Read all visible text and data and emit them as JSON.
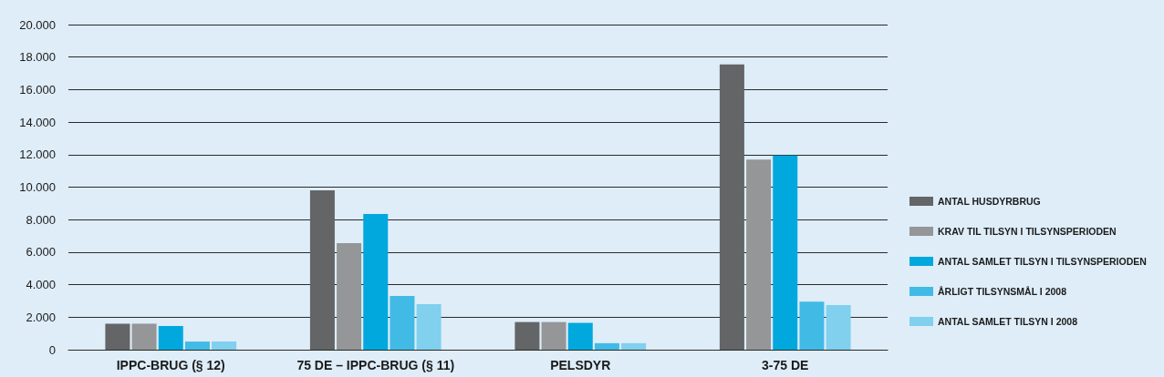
{
  "chart_data": {
    "type": "bar",
    "categories": [
      "IPPC-BRUG (§ 12)",
      "75 DE – IPPC-BRUG (§ 11)",
      "PELSDYR",
      "3-75 DE"
    ],
    "series": [
      {
        "name": "ANTAL HUSDYRBRUG",
        "color": "#646567",
        "values": [
          1600,
          9800,
          1700,
          17550
        ]
      },
      {
        "name": "KRAV TIL TILSYN I TILSYNSPERIODEN",
        "color": "#959698",
        "values": [
          1600,
          6550,
          1700,
          11700
        ]
      },
      {
        "name": "ANTAL SAMLET TILSYN I TILSYNSPERIODEN",
        "color": "#00a8de",
        "values": [
          1450,
          8350,
          1650,
          11950
        ]
      },
      {
        "name": "ÅRLIGT TILSYNSMÅL I 2008",
        "color": "#41bbe6",
        "values": [
          500,
          3300,
          400,
          2950
        ]
      },
      {
        "name": "ANTAL SAMLET TILSYN I 2008",
        "color": "#80d0ee",
        "values": [
          500,
          2800,
          400,
          2750
        ]
      }
    ],
    "ylim": [
      0,
      20000
    ],
    "yticks": [
      0,
      {
        "value": 2000,
        "label": "2.000"
      },
      {
        "value": 4000,
        "label": "4.000"
      },
      {
        "value": 6000,
        "label": "6.000"
      },
      {
        "value": 8000,
        "label": "8.000"
      },
      {
        "value": 10000,
        "label": "10.000"
      },
      {
        "value": 12000,
        "label": "12.000"
      },
      {
        "value": 14000,
        "label": "14.000"
      },
      {
        "value": 16000,
        "label": "16.000"
      },
      {
        "value": 18000,
        "label": "18.000"
      },
      {
        "value": 20000,
        "label": "20.000"
      }
    ],
    "grid": "y",
    "legend": "right"
  }
}
